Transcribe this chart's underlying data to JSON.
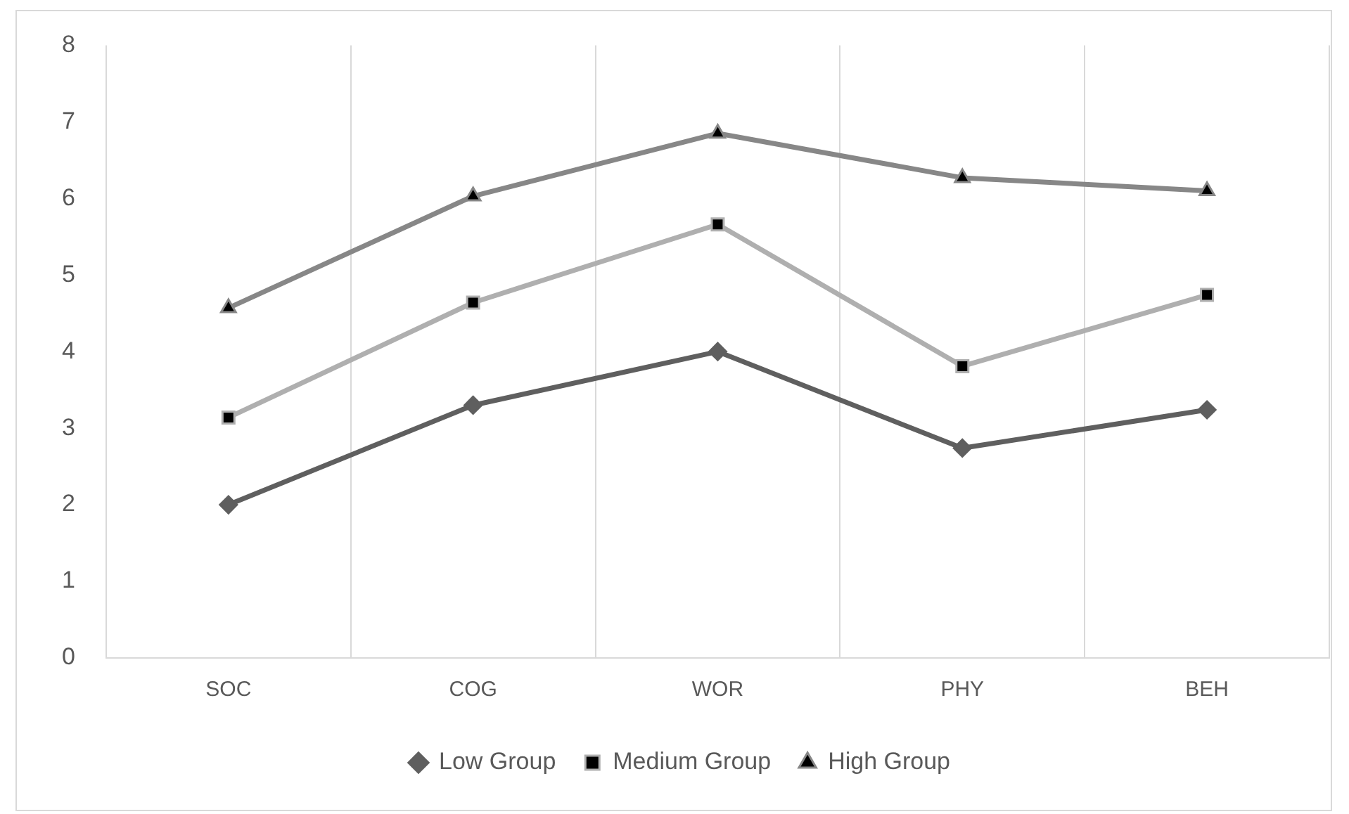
{
  "chart_data": {
    "type": "line",
    "categories": [
      "SOC",
      "COG",
      "WOR",
      "PHY",
      "BEH"
    ],
    "series": [
      {
        "name": "Low Group",
        "color": "#5f5f5f",
        "marker": "diamond",
        "values": [
          2.0,
          3.3,
          4.0,
          2.74,
          3.24
        ]
      },
      {
        "name": "Medium Group",
        "color": "#afafaf",
        "marker": "square",
        "values": [
          3.14,
          4.64,
          5.66,
          3.81,
          4.74
        ]
      },
      {
        "name": "High Group",
        "color": "#878787",
        "marker": "triangle",
        "values": [
          4.57,
          6.03,
          6.85,
          6.27,
          6.1
        ]
      }
    ],
    "ylim": [
      0,
      8
    ],
    "yticks": [
      0,
      1,
      2,
      3,
      4,
      5,
      6,
      7,
      8
    ],
    "grid": "x",
    "legend": "bottom",
    "line_style": "solid"
  }
}
